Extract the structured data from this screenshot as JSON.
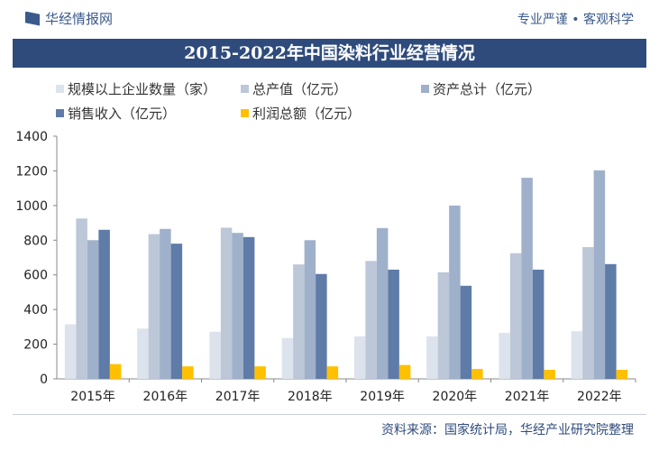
{
  "header": {
    "logo": "华经情报网",
    "slogan": "专业严谨 • 客观科学"
  },
  "footer": {
    "source": "资料来源：国家统计局，华经产业研究院整理"
  },
  "chart_data": {
    "type": "bar",
    "title": "2015-2022年中国染料行业经营情况",
    "categories": [
      "2015年",
      "2016年",
      "2017年",
      "2018年",
      "2019年",
      "2020年",
      "2021年",
      "2022年"
    ],
    "ylim": [
      0,
      1400
    ],
    "yticks": [
      "0",
      "200",
      "400",
      "600",
      "800",
      "1000",
      "1200",
      "1400"
    ],
    "legend_position": "top",
    "series": [
      {
        "name": "规模以上企业数量（家）",
        "color": "#dde3ed",
        "values": [
          315,
          290,
          272,
          235,
          245,
          245,
          265,
          275
        ]
      },
      {
        "name": "总产值（亿元）",
        "color": "#bcc7d8",
        "values": [
          925,
          835,
          872,
          660,
          680,
          615,
          725,
          760
        ]
      },
      {
        "name": "资产总计（亿元）",
        "color": "#9fb0ca",
        "values": [
          800,
          865,
          842,
          800,
          870,
          1000,
          1160,
          1203
        ]
      },
      {
        "name": "销售收入（亿元）",
        "color": "#5f7ba7",
        "values": [
          860,
          780,
          818,
          605,
          630,
          537,
          630,
          662
        ]
      },
      {
        "name": "利润总额（亿元）",
        "color": "#ffc000",
        "values": [
          85,
          72,
          72,
          72,
          80,
          57,
          52,
          52
        ]
      }
    ]
  }
}
